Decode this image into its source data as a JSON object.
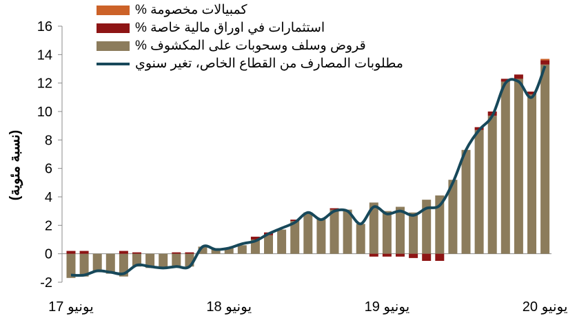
{
  "chart_data": {
    "type": "bar",
    "y_axis_label": "(نسبة مئوية)",
    "categories": [
      "يونيو 17",
      null,
      null,
      null,
      null,
      null,
      null,
      null,
      null,
      null,
      null,
      null,
      "يونيو 18",
      null,
      null,
      null,
      null,
      null,
      null,
      null,
      null,
      null,
      null,
      null,
      "يونيو 19",
      null,
      null,
      null,
      null,
      null,
      null,
      null,
      null,
      null,
      null,
      null,
      "يونيو 20"
    ],
    "series": [
      {
        "name": "كمبيالات مخصومة %",
        "color": "#cc6228",
        "values": [
          0,
          0,
          0,
          0,
          0,
          0,
          0,
          0,
          0,
          0,
          0,
          0,
          0,
          0,
          0,
          0,
          0,
          0,
          0,
          0,
          0,
          0,
          0,
          0,
          0,
          0,
          0,
          0,
          0,
          0,
          0,
          0,
          0,
          0,
          0,
          0,
          0.1
        ]
      },
      {
        "name": "استثمارات في اوراق مالية خاصة %",
        "color": "#8e1515",
        "values": [
          0.2,
          0.2,
          0,
          0,
          0.2,
          0.1,
          0,
          0,
          0.1,
          0.1,
          0,
          0,
          0,
          0,
          0.2,
          0.2,
          0,
          0.1,
          0,
          0,
          0.1,
          0,
          0,
          -0.2,
          -0.2,
          -0.2,
          -0.3,
          -0.5,
          -0.5,
          0,
          0,
          0.2,
          0.3,
          0.2,
          0.3,
          0.2,
          0.3
        ]
      },
      {
        "name": "قروض وسلف وسحوبات على المكشوف %",
        "color": "#8c7c5c",
        "values": [
          -1.7,
          -1.6,
          -1.3,
          -1.4,
          -1.6,
          -0.9,
          -1.0,
          -1.0,
          -0.9,
          -0.9,
          0.5,
          0.3,
          0.4,
          0.6,
          1.0,
          1.3,
          1.7,
          2.3,
          2.9,
          2.4,
          3.1,
          3.1,
          2.1,
          3.6,
          3.0,
          3.3,
          2.9,
          3.8,
          4.1,
          5.2,
          7.3,
          8.7,
          9.7,
          12.1,
          12.3,
          11.2,
          13.3
        ]
      },
      {
        "name": "مطلوبات المصارف من القطاع الخاص، تغير سنوي",
        "color": "#17485a",
        "type": "line",
        "values": [
          -1.5,
          -1.5,
          -1.2,
          -1.3,
          -1.4,
          -0.8,
          -0.9,
          -1.0,
          -0.9,
          -0.9,
          0.5,
          0.3,
          0.4,
          0.7,
          0.9,
          1.4,
          1.8,
          2.2,
          2.9,
          2.4,
          3.0,
          3.0,
          2.1,
          3.3,
          2.8,
          3.0,
          2.7,
          3.2,
          3.4,
          5.0,
          7.3,
          8.7,
          9.7,
          12.0,
          12.1,
          11.0,
          13.2
        ]
      }
    ],
    "ylim": [
      -2,
      16
    ],
    "yticks": [
      -2,
      0,
      2,
      4,
      6,
      8,
      10,
      12,
      14,
      16
    ]
  }
}
